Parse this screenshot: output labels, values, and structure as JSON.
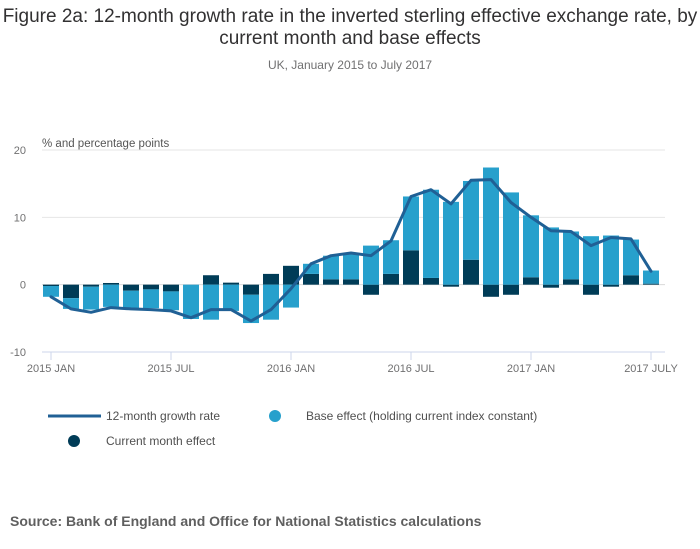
{
  "chart_data": {
    "type": "bar",
    "subtype": "stacked bar with line",
    "title": "Figure 2a: 12-month growth rate in the inverted sterling effective exchange rate, by current month and base effects",
    "subtitle": "UK, January 2015 to July 2017",
    "ylabel": "% and percentage points",
    "xlabel": "",
    "ylim": [
      -10,
      20
    ],
    "yticks": [
      -10,
      0,
      10,
      20
    ],
    "grid": true,
    "x_tick_labels": [
      {
        "index": 0,
        "label": "2015 JAN"
      },
      {
        "index": 6,
        "label": "2015 JUL"
      },
      {
        "index": 12,
        "label": "2016 JAN"
      },
      {
        "index": 18,
        "label": "2016 JUL"
      },
      {
        "index": 24,
        "label": "2017 JAN"
      },
      {
        "index": 30,
        "label": "2017 JULY"
      }
    ],
    "categories": [
      "2015 JAN",
      "2015 FEB",
      "2015 MAR",
      "2015 APR",
      "2015 MAY",
      "2015 JUN",
      "2015 JUL",
      "2015 AUG",
      "2015 SEP",
      "2015 OCT",
      "2015 NOV",
      "2015 DEC",
      "2016 JAN",
      "2016 FEB",
      "2016 MAR",
      "2016 APR",
      "2016 MAY",
      "2016 JUN",
      "2016 JUL",
      "2016 AUG",
      "2016 SEP",
      "2016 OCT",
      "2016 NOV",
      "2016 DEC",
      "2017 JAN",
      "2017 FEB",
      "2017 MAR",
      "2017 APR",
      "2017 MAY",
      "2017 JUN",
      "2017 JULY"
    ],
    "series": [
      {
        "name": "Current month effect",
        "type": "bar",
        "color": "#003c57",
        "values": [
          -0.2,
          -2.0,
          -0.3,
          0.25,
          -0.9,
          -0.7,
          -1.0,
          0.0,
          1.4,
          0.3,
          -1.5,
          1.6,
          2.8,
          1.6,
          0.8,
          0.8,
          -1.5,
          1.6,
          5.1,
          1.0,
          -0.3,
          3.7,
          -1.8,
          -1.5,
          1.1,
          -0.45,
          0.8,
          -1.5,
          -0.3,
          1.4,
          0.15
        ]
      },
      {
        "name": "Base effect (holding current index constant)",
        "type": "bar",
        "color": "#27a0cc",
        "values": [
          -1.6,
          -1.6,
          -3.4,
          -3.3,
          -2.6,
          -2.8,
          -2.8,
          -5.1,
          -5.2,
          -3.9,
          -4.2,
          -5.2,
          -3.4,
          1.5,
          3.5,
          3.8,
          5.8,
          5.0,
          8.0,
          13.1,
          12.3,
          11.7,
          17.4,
          13.7,
          9.2,
          8.5,
          7.1,
          7.2,
          7.3,
          5.3,
          1.95
        ]
      },
      {
        "name": "12-month growth rate",
        "type": "line",
        "color": "#206095",
        "values": [
          -1.8,
          -3.6,
          -4.1,
          -3.4,
          -3.6,
          -3.7,
          -3.9,
          -4.9,
          -3.7,
          -3.7,
          -5.4,
          -3.7,
          -0.6,
          3.1,
          4.3,
          4.7,
          4.3,
          6.5,
          13.1,
          14.1,
          12.0,
          15.5,
          15.6,
          12.2,
          10.0,
          8.0,
          7.9,
          5.8,
          7.0,
          6.8,
          2.0
        ]
      }
    ],
    "legend": {
      "placement": "bottom-left",
      "items": [
        {
          "label": "12-month growth rate",
          "symbol": "line",
          "color": "#206095"
        },
        {
          "label": "Base effect (holding current index constant)",
          "symbol": "circle",
          "color": "#27a0cc"
        },
        {
          "label": "Current month effect",
          "symbol": "circle",
          "color": "#003c57"
        }
      ]
    }
  },
  "source": "Source: Bank of England and Office for National Statistics calculations"
}
